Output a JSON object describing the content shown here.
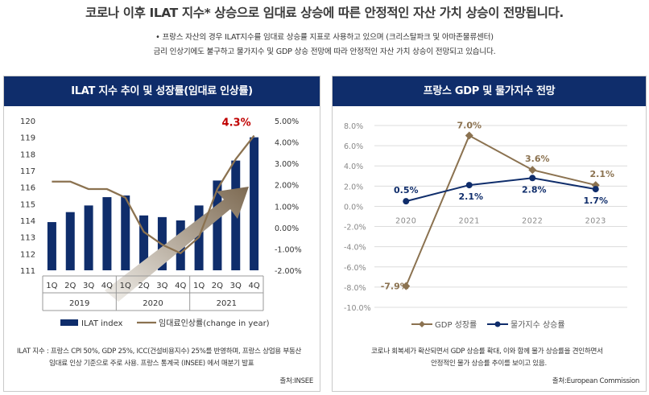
{
  "headline": "코로나 이후 ILAT 지수* 상승으로  임대료 상승에 따른 안정적인 자산 가치 상승이 전망됩니다.",
  "sub_line1": "• 프랑스 자산의 경우 ILAT지수를 임대료 상승률 지표로 사용하고 있으며 (크리스탈파크 및 아마존물류센터)",
  "sub_line2": "금리 인상기에도 불구하고 물가지수 및 GDP 상승 전망에 따라  안정적인 자산 가치 상승이 전망되고 있습니다.",
  "left_panel": {
    "title": "ILAT 지수 추이 및 성장률(임대료 인상률)",
    "note_line1": "ILAT 지수 : 프랑스 CPI 50%, GDP 25%, ICC(건설비용지수) 25%를 반영하며, 프랑스 상업용 부동산",
    "note_line2": "임대료 인상 기준으로 주로 사용. 프랑스 통계국 (INSEE) 에서 매분기 발표",
    "source": "출처:INSEE"
  },
  "right_panel": {
    "title": "프랑스 GDP 및 물가지수 전망",
    "note_line1": "코로나 회복세가 확산되면서 GDP 상승률 확대, 이와 함께 물가 상승률을 견인하면서",
    "note_line2": "안정적인 물가 상승률 추이를 보이고 있음.",
    "source": "출처:European Commission"
  },
  "colors": {
    "navy": "#0f2d6b",
    "brown": "#8b7250",
    "red": "#c00000",
    "arrow_dark": "#7d6a52",
    "arrow_light": "#f2f0ec"
  },
  "chart_data": [
    {
      "type": "bar",
      "categories": [
        "1Q",
        "2Q",
        "3Q",
        "4Q",
        "1Q",
        "2Q",
        "3Q",
        "4Q",
        "1Q",
        "2Q",
        "3Q",
        "4Q"
      ],
      "groups": [
        {
          "label": "2019",
          "span": 4
        },
        {
          "label": "2020",
          "span": 4
        },
        {
          "label": "2021",
          "span": 4
        }
      ],
      "series": [
        {
          "name": "ILAT index",
          "kind": "bar",
          "axis": "left",
          "values": [
            113.9,
            114.5,
            114.9,
            115.4,
            115.5,
            114.3,
            114.2,
            114.0,
            114.9,
            116.4,
            117.6,
            119.0
          ]
        },
        {
          "name": "임대료인상률(change in year)",
          "kind": "line",
          "axis": "right",
          "values": [
            2.15,
            2.15,
            1.8,
            1.8,
            1.4,
            -0.2,
            -0.8,
            -1.2,
            -0.45,
            1.8,
            3.2,
            4.3
          ]
        }
      ],
      "ylim_left": [
        111,
        120
      ],
      "yticks_left": [
        111,
        112,
        113,
        114,
        115,
        116,
        117,
        118,
        119,
        120
      ],
      "ylim_right": [
        -2.0,
        5.0
      ],
      "yticks_right": [
        "-2.00%",
        "-1.00%",
        "0.00%",
        "1.00%",
        "2.00%",
        "3.00%",
        "4.00%",
        "5.00%"
      ],
      "annotation": "4.3%",
      "legend": "bottom",
      "grid": false
    },
    {
      "type": "line",
      "x": [
        "2020",
        "2021",
        "2022",
        "2023"
      ],
      "series": [
        {
          "name": "GDP 성장률",
          "values": [
            -7.9,
            7.0,
            3.6,
            2.1
          ],
          "labels": [
            "-7.9%",
            "7.0%",
            "3.6%",
            "2.1%"
          ],
          "marker": "diamond"
        },
        {
          "name": "물가지수 상승률",
          "values": [
            0.5,
            2.1,
            2.8,
            1.7
          ],
          "labels": [
            "0.5%",
            "2.1%",
            "2.8%",
            "1.7%"
          ],
          "marker": "circle"
        }
      ],
      "ylim": [
        -10.0,
        8.0
      ],
      "yticks": [
        "-10.0%",
        "-8.0%",
        "-6.0%",
        "-4.0%",
        "-2.0%",
        "0.0%",
        "2.0%",
        "4.0%",
        "6.0%",
        "8.0%"
      ],
      "legend": "bottom",
      "grid": true
    }
  ]
}
